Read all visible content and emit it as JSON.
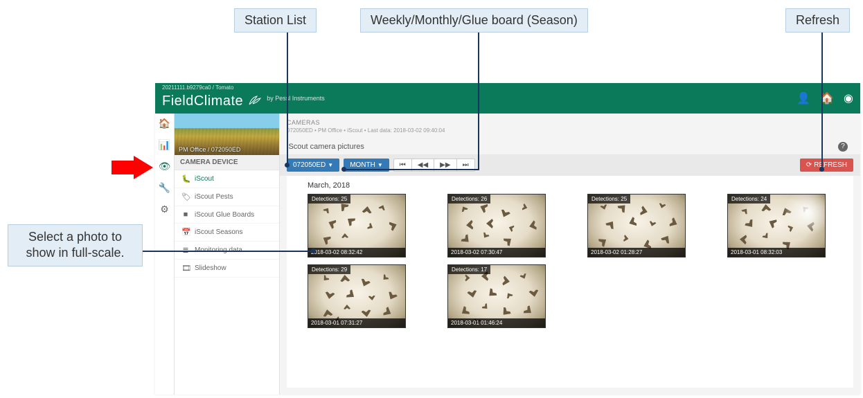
{
  "callouts": {
    "station_list": "Station List",
    "period": "Weekly/Monthly/Glue board (Season)",
    "refresh": "Refresh",
    "select_photo": "Select a photo to show in full-scale."
  },
  "topbar": {
    "crumb": "20211111.b9279ca0 / Tomato",
    "logo_a": "Field",
    "logo_b": "Climate",
    "by": "by Pessl Instruments"
  },
  "station": {
    "label": "PM Office / 072050ED"
  },
  "panel": {
    "hdr": "CAMERA DEVICE",
    "items": [
      {
        "label": "iScout",
        "active": true,
        "icon": "bug"
      },
      {
        "label": "iScout Pests",
        "active": false,
        "icon": "tag"
      },
      {
        "label": "iScout Glue Boards",
        "active": false,
        "icon": "square"
      },
      {
        "label": "iScout Seasons",
        "active": false,
        "icon": "calendar"
      },
      {
        "label": "Monitoring data",
        "active": false,
        "icon": "bars"
      },
      {
        "label": "Slideshow",
        "active": false,
        "icon": "film"
      }
    ]
  },
  "content": {
    "head1": "CAMERAS",
    "head2": "072050ED • PM Office • iScout • Last data: 2018-03-02 09:40:04",
    "subtitle": "iScout camera pictures"
  },
  "toolbar": {
    "station": "072050ED",
    "period": "MONTH",
    "refresh": "REFRESH"
  },
  "gallery": {
    "month": "March, 2018",
    "thumbs": [
      {
        "det": "Detections: 25",
        "ts": "2018-03-02 08:32:42",
        "glare": false
      },
      {
        "det": "Detections: 26",
        "ts": "2018-03-02 07:30:47",
        "glare": false
      },
      {
        "det": "Detections: 25",
        "ts": "2018-03-02 01:28:27",
        "glare": false
      },
      {
        "det": "Detections: 24",
        "ts": "2018-03-01 08:32:03",
        "glare": true
      },
      {
        "det": "Detections: 29",
        "ts": "2018-03-01 07:31:27",
        "glare": false
      },
      {
        "det": "Detections: 17",
        "ts": "2018-03-01 01:46:24",
        "glare": false
      }
    ]
  },
  "colors": {
    "brand": "#0b7a5b",
    "callout_bg": "#e3edf5",
    "callout_border": "#b8cde0",
    "line": "#1a365d",
    "btn_blue": "#337ab7",
    "btn_red": "#d9534f"
  }
}
